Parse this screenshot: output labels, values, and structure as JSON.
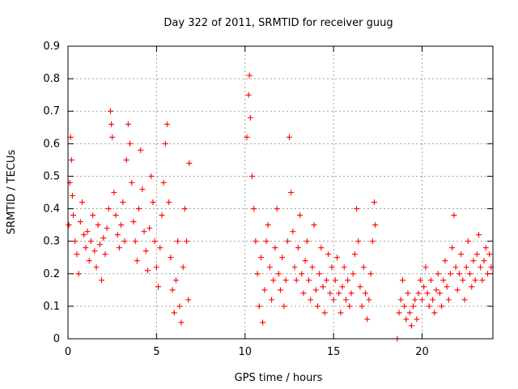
{
  "chart_data": {
    "type": "scatter",
    "title": "Day 322 of 2011, SRMTID for receiver guug",
    "xlabel": "GPS time / hours",
    "ylabel": "SRMTID / TECUs",
    "xlim": [
      0,
      24
    ],
    "ylim": [
      0,
      0.9
    ],
    "x_ticks": [
      0,
      5,
      10,
      15,
      20
    ],
    "x_tick_labels": [
      "0",
      "5",
      "10",
      "15",
      "20"
    ],
    "y_ticks": [
      0,
      0.1,
      0.2,
      0.3,
      0.4,
      0.5,
      0.6,
      0.7,
      0.8,
      0.9
    ],
    "y_tick_labels": [
      "0",
      "0.1",
      "0.2",
      "0.3",
      "0.4",
      "0.5",
      "0.6",
      "0.7",
      "0.8",
      "0.9"
    ],
    "grid": true,
    "marker": "+",
    "marker_color": "#ff0000",
    "series": [
      {
        "name": "SRMTID",
        "points": [
          [
            0.05,
            0.35
          ],
          [
            0.1,
            0.48
          ],
          [
            0.15,
            0.62
          ],
          [
            0.2,
            0.55
          ],
          [
            0.25,
            0.44
          ],
          [
            0.3,
            0.38
          ],
          [
            0.4,
            0.3
          ],
          [
            0.5,
            0.26
          ],
          [
            0.6,
            0.2
          ],
          [
            0.7,
            0.36
          ],
          [
            0.8,
            0.42
          ],
          [
            0.9,
            0.32
          ],
          [
            1.0,
            0.28
          ],
          [
            1.1,
            0.33
          ],
          [
            1.2,
            0.24
          ],
          [
            1.3,
            0.3
          ],
          [
            1.4,
            0.38
          ],
          [
            1.5,
            0.27
          ],
          [
            1.6,
            0.22
          ],
          [
            1.7,
            0.35
          ],
          [
            1.8,
            0.29
          ],
          [
            1.9,
            0.18
          ],
          [
            2.0,
            0.31
          ],
          [
            2.1,
            0.26
          ],
          [
            2.2,
            0.34
          ],
          [
            2.3,
            0.4
          ],
          [
            2.4,
            0.7
          ],
          [
            2.45,
            0.66
          ],
          [
            2.5,
            0.62
          ],
          [
            2.6,
            0.45
          ],
          [
            2.7,
            0.38
          ],
          [
            2.8,
            0.32
          ],
          [
            2.9,
            0.28
          ],
          [
            3.0,
            0.35
          ],
          [
            3.1,
            0.42
          ],
          [
            3.2,
            0.3
          ],
          [
            3.3,
            0.55
          ],
          [
            3.4,
            0.66
          ],
          [
            3.5,
            0.6
          ],
          [
            3.6,
            0.48
          ],
          [
            3.7,
            0.36
          ],
          [
            3.8,
            0.3
          ],
          [
            3.9,
            0.24
          ],
          [
            4.0,
            0.4
          ],
          [
            4.1,
            0.58
          ],
          [
            4.2,
            0.46
          ],
          [
            4.3,
            0.33
          ],
          [
            4.4,
            0.27
          ],
          [
            4.5,
            0.21
          ],
          [
            4.6,
            0.34
          ],
          [
            4.7,
            0.5
          ],
          [
            4.8,
            0.42
          ],
          [
            4.9,
            0.3
          ],
          [
            5.0,
            0.22
          ],
          [
            5.1,
            0.16
          ],
          [
            5.2,
            0.28
          ],
          [
            5.3,
            0.38
          ],
          [
            5.4,
            0.48
          ],
          [
            5.5,
            0.6
          ],
          [
            5.6,
            0.66
          ],
          [
            5.7,
            0.42
          ],
          [
            5.8,
            0.25
          ],
          [
            5.9,
            0.15
          ],
          [
            6.0,
            0.08
          ],
          [
            6.1,
            0.18
          ],
          [
            6.2,
            0.3
          ],
          [
            6.3,
            0.1
          ],
          [
            6.4,
            0.05
          ],
          [
            6.5,
            0.22
          ],
          [
            6.6,
            0.4
          ],
          [
            6.7,
            0.3
          ],
          [
            6.8,
            0.12
          ],
          [
            6.85,
            0.54
          ],
          [
            10.1,
            0.62
          ],
          [
            10.2,
            0.75
          ],
          [
            10.25,
            0.81
          ],
          [
            10.3,
            0.68
          ],
          [
            10.4,
            0.5
          ],
          [
            10.5,
            0.4
          ],
          [
            10.6,
            0.3
          ],
          [
            10.7,
            0.2
          ],
          [
            10.8,
            0.1
          ],
          [
            10.9,
            0.25
          ],
          [
            11.0,
            0.05
          ],
          [
            11.1,
            0.15
          ],
          [
            11.2,
            0.3
          ],
          [
            11.3,
            0.35
          ],
          [
            11.4,
            0.22
          ],
          [
            11.5,
            0.12
          ],
          [
            11.6,
            0.18
          ],
          [
            11.7,
            0.28
          ],
          [
            11.8,
            0.4
          ],
          [
            11.9,
            0.2
          ],
          [
            12.0,
            0.15
          ],
          [
            12.1,
            0.25
          ],
          [
            12.2,
            0.1
          ],
          [
            12.3,
            0.18
          ],
          [
            12.4,
            0.3
          ],
          [
            12.5,
            0.62
          ],
          [
            12.6,
            0.45
          ],
          [
            12.7,
            0.33
          ],
          [
            12.8,
            0.22
          ],
          [
            12.9,
            0.18
          ],
          [
            13.0,
            0.28
          ],
          [
            13.1,
            0.38
          ],
          [
            13.2,
            0.2
          ],
          [
            13.3,
            0.14
          ],
          [
            13.4,
            0.24
          ],
          [
            13.5,
            0.3
          ],
          [
            13.6,
            0.18
          ],
          [
            13.7,
            0.12
          ],
          [
            13.8,
            0.22
          ],
          [
            13.9,
            0.35
          ],
          [
            14.0,
            0.15
          ],
          [
            14.1,
            0.1
          ],
          [
            14.2,
            0.2
          ],
          [
            14.3,
            0.28
          ],
          [
            14.4,
            0.16
          ],
          [
            14.5,
            0.08
          ],
          [
            14.6,
            0.18
          ],
          [
            14.7,
            0.26
          ],
          [
            14.8,
            0.14
          ],
          [
            14.9,
            0.22
          ],
          [
            15.0,
            0.12
          ],
          [
            15.1,
            0.18
          ],
          [
            15.2,
            0.25
          ],
          [
            15.3,
            0.14
          ],
          [
            15.4,
            0.08
          ],
          [
            15.5,
            0.16
          ],
          [
            15.6,
            0.22
          ],
          [
            15.7,
            0.12
          ],
          [
            15.8,
            0.18
          ],
          [
            15.9,
            0.1
          ],
          [
            16.0,
            0.14
          ],
          [
            16.1,
            0.2
          ],
          [
            16.2,
            0.26
          ],
          [
            16.3,
            0.4
          ],
          [
            16.4,
            0.3
          ],
          [
            16.5,
            0.16
          ],
          [
            16.6,
            0.1
          ],
          [
            16.7,
            0.22
          ],
          [
            16.8,
            0.14
          ],
          [
            16.9,
            0.06
          ],
          [
            17.0,
            0.12
          ],
          [
            17.1,
            0.2
          ],
          [
            17.2,
            0.3
          ],
          [
            17.3,
            0.42
          ],
          [
            17.35,
            0.35
          ],
          [
            18.6,
            0.0
          ],
          [
            18.7,
            0.08
          ],
          [
            18.8,
            0.12
          ],
          [
            18.9,
            0.18
          ],
          [
            19.0,
            0.1
          ],
          [
            19.1,
            0.06
          ],
          [
            19.2,
            0.14
          ],
          [
            19.3,
            0.08
          ],
          [
            19.4,
            0.04
          ],
          [
            19.5,
            0.1
          ],
          [
            19.6,
            0.12
          ],
          [
            19.7,
            0.06
          ],
          [
            19.8,
            0.14
          ],
          [
            19.9,
            0.18
          ],
          [
            20.0,
            0.12
          ],
          [
            20.1,
            0.16
          ],
          [
            20.2,
            0.22
          ],
          [
            20.3,
            0.14
          ],
          [
            20.4,
            0.1
          ],
          [
            20.5,
            0.18
          ],
          [
            20.6,
            0.12
          ],
          [
            20.7,
            0.08
          ],
          [
            20.8,
            0.15
          ],
          [
            20.9,
            0.2
          ],
          [
            21.0,
            0.14
          ],
          [
            21.1,
            0.1
          ],
          [
            21.2,
            0.18
          ],
          [
            21.3,
            0.24
          ],
          [
            21.4,
            0.16
          ],
          [
            21.5,
            0.12
          ],
          [
            21.6,
            0.2
          ],
          [
            21.7,
            0.28
          ],
          [
            21.8,
            0.38
          ],
          [
            21.9,
            0.22
          ],
          [
            22.0,
            0.15
          ],
          [
            22.1,
            0.2
          ],
          [
            22.2,
            0.26
          ],
          [
            22.3,
            0.18
          ],
          [
            22.4,
            0.12
          ],
          [
            22.5,
            0.22
          ],
          [
            22.6,
            0.3
          ],
          [
            22.7,
            0.2
          ],
          [
            22.8,
            0.16
          ],
          [
            22.9,
            0.24
          ],
          [
            23.0,
            0.18
          ],
          [
            23.1,
            0.26
          ],
          [
            23.2,
            0.32
          ],
          [
            23.3,
            0.22
          ],
          [
            23.4,
            0.18
          ],
          [
            23.5,
            0.24
          ],
          [
            23.6,
            0.28
          ],
          [
            23.7,
            0.2
          ],
          [
            23.8,
            0.26
          ],
          [
            23.9,
            0.22
          ]
        ]
      }
    ]
  }
}
